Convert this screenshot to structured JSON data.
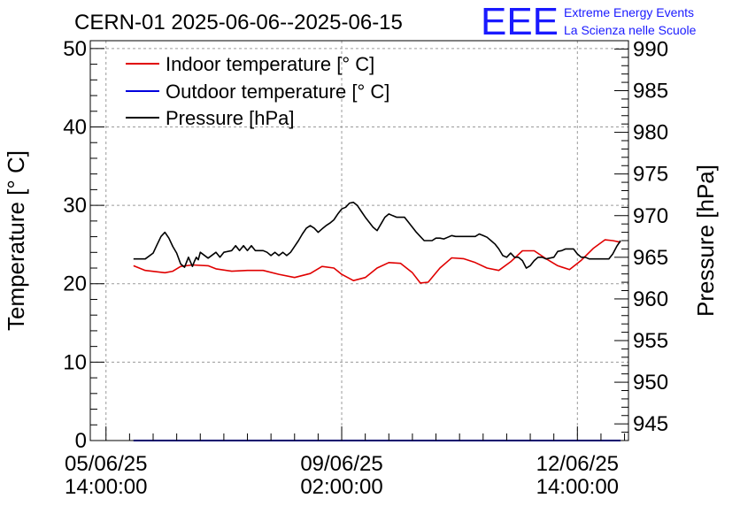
{
  "chart_data": {
    "type": "line",
    "title": "CERN-01 2025-06-06--2025-06-15",
    "logo_text": "EEE",
    "logo_lines": [
      "Extreme Energy Events",
      "La Scienza nelle Scuole"
    ],
    "ylabel_left": "Temperature [° C]",
    "ylabel_right": "Pressure [hPa]",
    "ylim_left": [
      0,
      51
    ],
    "ylim_right": [
      943,
      991
    ],
    "yticks_left": [
      "0",
      "10",
      "20",
      "30",
      "40",
      "50"
    ],
    "yticks_right": [
      "945",
      "950",
      "955",
      "960",
      "965",
      "970",
      "975",
      "980",
      "985",
      "990"
    ],
    "x_domain_hours": [
      -4,
      133
    ],
    "x_ticks": [
      {
        "hour": 0,
        "date": "05/06/25",
        "time": "14:00:00"
      },
      {
        "hour": 60,
        "date": "09/06/25",
        "time": "02:00:00"
      },
      {
        "hour": 120,
        "date": "12/06/25",
        "time": "14:00:00"
      }
    ],
    "grid": true,
    "legend_position": "top-left",
    "series": [
      {
        "name": "Indoor temperature [° C]",
        "axis": "left",
        "color": "#e00000",
        "x": [
          7,
          10,
          15,
          17,
          19,
          22,
          26,
          28,
          32,
          36,
          40,
          44,
          48,
          52,
          55,
          58,
          60,
          63,
          66,
          69,
          72,
          75,
          78,
          80,
          82,
          85,
          88,
          91,
          94,
          97,
          100,
          103,
          106,
          109,
          112,
          115,
          118,
          121,
          124,
          127,
          129,
          131
        ],
        "values": [
          22.3,
          21.7,
          21.4,
          21.6,
          22.2,
          22.4,
          22.3,
          21.9,
          21.6,
          21.7,
          21.7,
          21.2,
          20.8,
          21.3,
          22.2,
          22.0,
          21.2,
          20.4,
          20.8,
          22.0,
          22.7,
          22.6,
          21.4,
          20.1,
          20.2,
          22.0,
          23.3,
          23.2,
          22.7,
          22.0,
          21.7,
          22.8,
          24.2,
          24.2,
          23.2,
          22.3,
          21.8,
          23.0,
          24.5,
          25.6,
          25.5,
          25.3
        ]
      },
      {
        "name": "Outdoor temperature [° C]",
        "axis": "left",
        "color": "#0000dd",
        "x": [
          7,
          131
        ],
        "values": [
          0,
          0
        ]
      },
      {
        "name": "Pressure [hPa]",
        "axis": "right",
        "color": "#000000",
        "x": [
          7,
          10,
          12,
          13,
          14,
          15,
          16,
          17,
          18,
          19,
          20,
          21,
          22,
          22.5,
          23,
          23.5,
          24,
          26,
          28,
          29,
          30,
          32,
          33,
          34,
          35,
          36,
          37,
          38,
          40,
          41,
          42,
          43,
          44,
          45,
          46,
          47,
          48,
          49,
          50,
          51,
          52,
          53,
          54,
          55,
          56,
          57,
          58,
          59,
          60,
          61,
          62,
          63,
          64,
          65,
          66,
          67,
          68,
          69,
          70,
          71,
          72,
          73,
          74,
          76,
          77,
          78,
          79,
          80,
          81,
          82,
          83,
          84,
          85,
          86,
          87,
          88,
          89,
          90,
          91,
          94,
          95,
          96,
          97,
          98,
          99,
          100,
          101,
          102,
          103,
          104,
          105,
          106,
          107,
          108,
          109,
          110,
          111,
          112,
          114,
          115,
          116,
          117,
          119,
          120,
          121,
          122,
          123,
          124,
          125,
          126,
          127,
          128,
          129,
          130,
          131
        ],
        "values": [
          964.8,
          964.8,
          965.5,
          966.5,
          967.5,
          968.0,
          967.3,
          966.3,
          965.5,
          964.2,
          963.8,
          965.0,
          963.9,
          964.5,
          965.0,
          964.7,
          965.6,
          964.9,
          965.6,
          965.0,
          965.6,
          965.8,
          966.4,
          965.8,
          966.4,
          965.8,
          966.4,
          965.8,
          965.8,
          965.6,
          965.2,
          965.6,
          965.2,
          965.6,
          965.2,
          965.6,
          966.3,
          967.0,
          967.8,
          968.5,
          968.8,
          968.5,
          968.0,
          968.4,
          968.8,
          969.1,
          969.5,
          970.2,
          970.8,
          971.0,
          971.5,
          971.6,
          971.2,
          970.5,
          969.8,
          969.2,
          968.6,
          968.2,
          969.0,
          969.8,
          970.2,
          970.0,
          969.8,
          969.8,
          969.2,
          968.6,
          968.0,
          967.5,
          967.0,
          967.0,
          967.0,
          967.3,
          967.3,
          967.2,
          967.4,
          967.6,
          967.5,
          967.5,
          967.5,
          967.5,
          967.8,
          967.6,
          967.4,
          967.0,
          966.6,
          966.0,
          965.2,
          965.0,
          965.5,
          965.0,
          965.0,
          964.6,
          963.7,
          964.0,
          964.6,
          965.0,
          965.0,
          964.8,
          965.0,
          965.7,
          965.8,
          966.0,
          966.0,
          965.4,
          965.0,
          965.0,
          964.8,
          964.8,
          964.8,
          964.8,
          964.8,
          964.8,
          965.4,
          966.3,
          967.0
        ]
      }
    ]
  }
}
